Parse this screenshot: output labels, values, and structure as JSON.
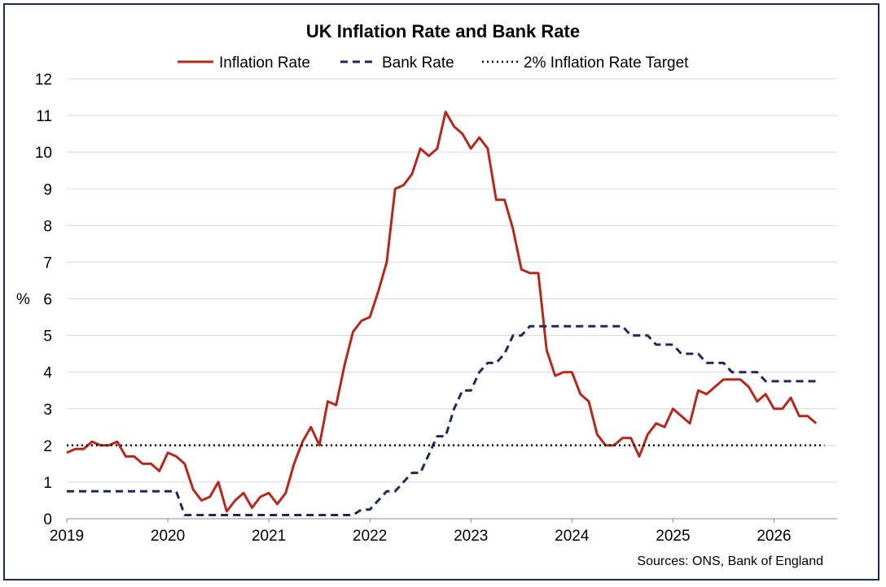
{
  "chart_data": {
    "type": "line",
    "title": "UK Inflation Rate and Bank Rate",
    "ylabel": "%",
    "ylim": [
      0,
      12
    ],
    "yticks": [
      "0",
      "1",
      "2",
      "3",
      "4",
      "5",
      "6",
      "7",
      "8",
      "9",
      "10",
      "11",
      "12"
    ],
    "xlim": [
      2019,
      2026.625
    ],
    "xticks": [
      "2019",
      "2020",
      "2021",
      "2022",
      "2023",
      "2024",
      "2025",
      "2026"
    ],
    "grid": "horizontal",
    "legend_position": "top",
    "source": "Sources: ONS, Bank of England",
    "series": [
      {
        "name": "Inflation Rate",
        "color": "#b5281e",
        "style": "solid",
        "x_start": 2019.0,
        "x_step_months": 1,
        "values": [
          1.8,
          1.9,
          1.9,
          2.1,
          2.0,
          2.0,
          2.1,
          1.7,
          1.7,
          1.5,
          1.5,
          1.3,
          1.8,
          1.7,
          1.5,
          0.8,
          0.5,
          0.6,
          1.0,
          0.2,
          0.5,
          0.7,
          0.3,
          0.6,
          0.7,
          0.4,
          0.7,
          1.5,
          2.1,
          2.5,
          2.0,
          3.2,
          3.1,
          4.2,
          5.1,
          5.4,
          5.5,
          6.2,
          7.0,
          9.0,
          9.1,
          9.4,
          10.1,
          9.9,
          10.1,
          11.1,
          10.7,
          10.5,
          10.1,
          10.4,
          10.1,
          8.7,
          8.7,
          7.9,
          6.8,
          6.7,
          6.7,
          4.6,
          3.9,
          4.0,
          4.0,
          3.4,
          3.2,
          2.3,
          2.0,
          2.0,
          2.2,
          2.2,
          1.7,
          2.3,
          2.6,
          2.5,
          3.0,
          2.8,
          2.6,
          3.5,
          3.4,
          3.6,
          3.8,
          3.8,
          3.8,
          3.6,
          3.2,
          3.4,
          3.0,
          3.0,
          3.3,
          2.8,
          2.8,
          2.6
        ]
      },
      {
        "name": "Bank Rate",
        "color": "#1f2a56",
        "style": "dashed",
        "x_start": 2019.0,
        "x_step_months": 1,
        "values": [
          0.75,
          0.75,
          0.75,
          0.75,
          0.75,
          0.75,
          0.75,
          0.75,
          0.75,
          0.75,
          0.75,
          0.75,
          0.75,
          0.75,
          0.1,
          0.1,
          0.1,
          0.1,
          0.1,
          0.1,
          0.1,
          0.1,
          0.1,
          0.1,
          0.1,
          0.1,
          0.1,
          0.1,
          0.1,
          0.1,
          0.1,
          0.1,
          0.1,
          0.1,
          0.1,
          0.25,
          0.25,
          0.5,
          0.75,
          0.75,
          1.0,
          1.25,
          1.25,
          1.75,
          2.25,
          2.25,
          3.0,
          3.5,
          3.5,
          4.0,
          4.25,
          4.25,
          4.5,
          5.0,
          5.0,
          5.25,
          5.25,
          5.25,
          5.25,
          5.25,
          5.25,
          5.25,
          5.25,
          5.25,
          5.25,
          5.25,
          5.25,
          5.0,
          5.0,
          5.0,
          4.75,
          4.75,
          4.75,
          4.5,
          4.5,
          4.5,
          4.25,
          4.25,
          4.25,
          4.0,
          4.0,
          4.0,
          4.0,
          3.75,
          3.75,
          3.75,
          3.75,
          3.75,
          3.75,
          3.75
        ]
      },
      {
        "name": "2% Inflation Rate Target",
        "color": "#000000",
        "style": "dotted",
        "x": [
          2019.0,
          2026.5
        ],
        "values": [
          2,
          2
        ]
      }
    ]
  }
}
